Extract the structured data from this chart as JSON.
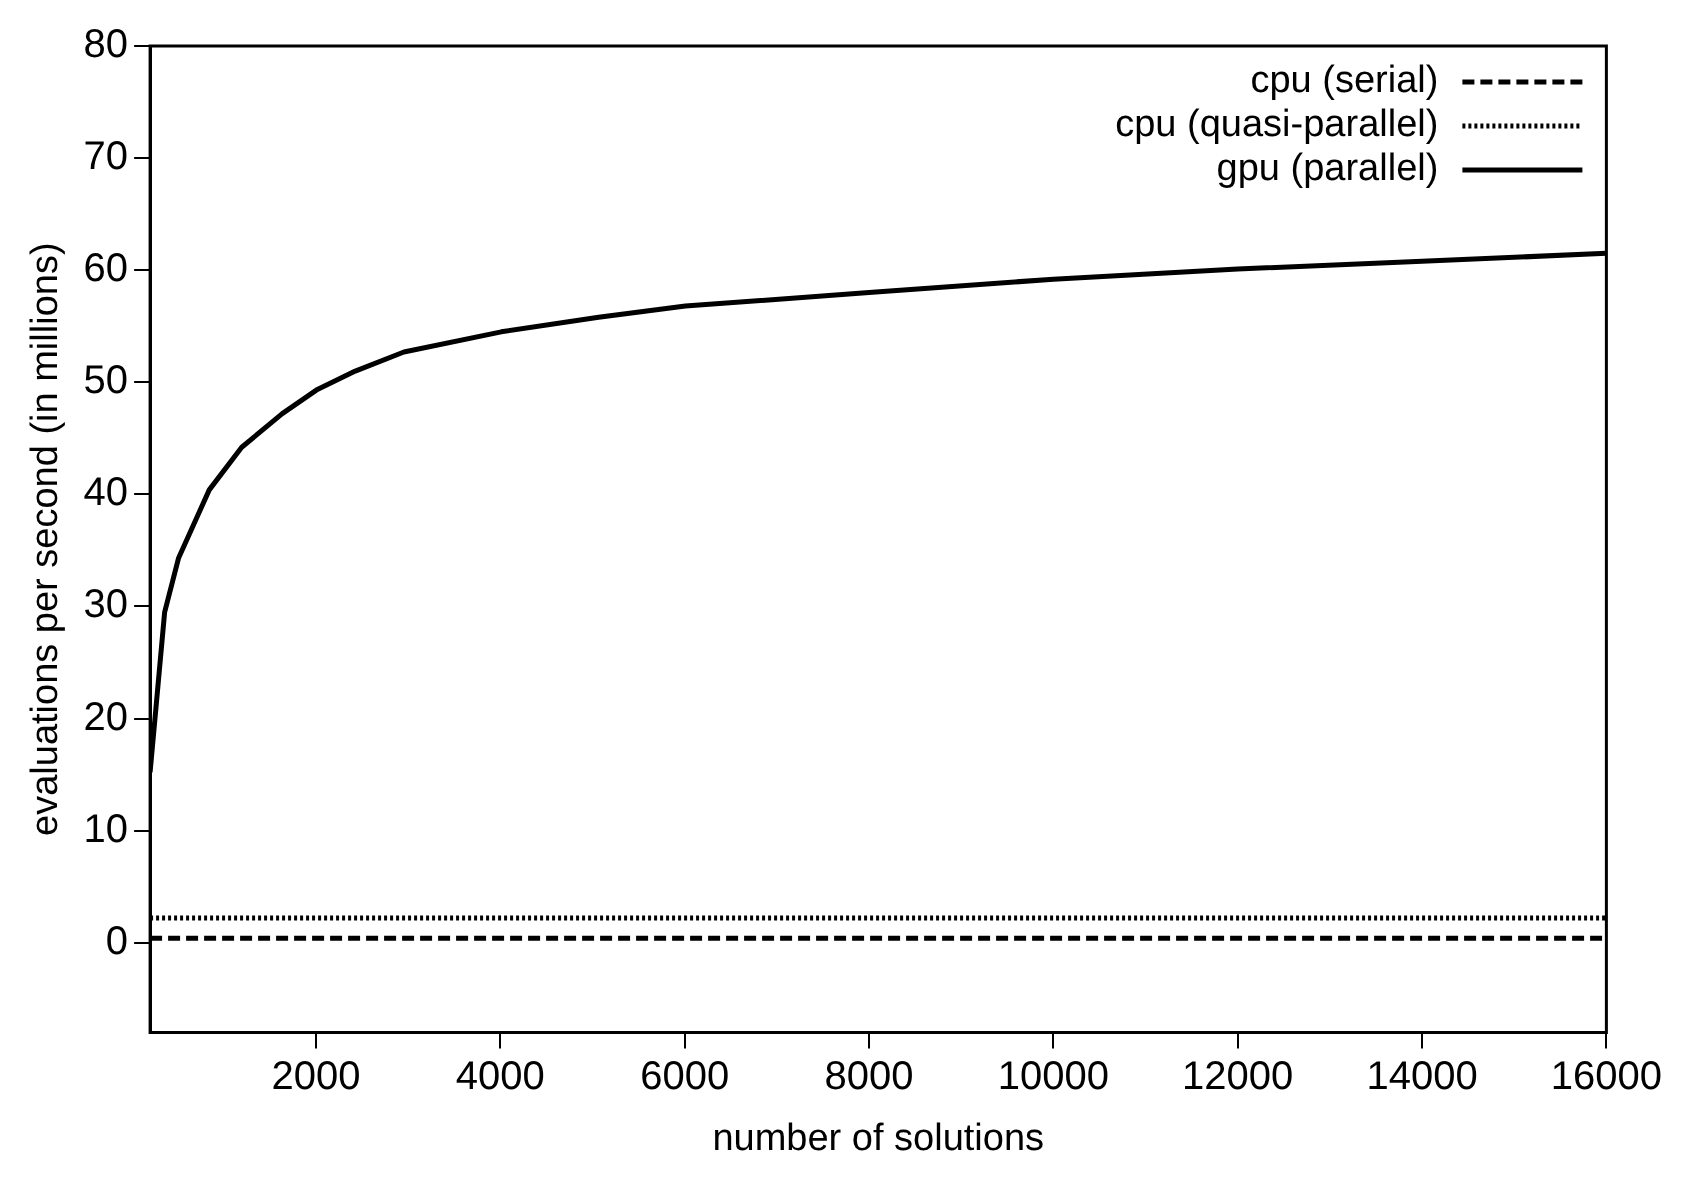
{
  "chart_data": {
    "type": "line",
    "xlabel": "number of solutions",
    "ylabel": "evaluations per second (in millions)",
    "xlim": [
      200,
      16000
    ],
    "xticks": [
      2000,
      4000,
      6000,
      8000,
      10000,
      12000,
      14000,
      16000
    ],
    "ylim": [
      -8,
      80
    ],
    "yticks": [
      0,
      10,
      20,
      30,
      40,
      50,
      60,
      70,
      80
    ],
    "grid": false,
    "legend": "top right",
    "marker": "none",
    "series": [
      {
        "name": "cpu (serial)",
        "color": "#000000",
        "line_style": "dashed",
        "x": [
          200,
          16000
        ],
        "values": [
          0.4,
          0.4
        ]
      },
      {
        "name": "cpu (quasi-parallel)",
        "color": "#000000",
        "line_style": "dotted",
        "x": [
          200,
          16000
        ],
        "values": [
          2.2,
          2.2
        ]
      },
      {
        "name": "gpu (parallel)",
        "color": "#000000",
        "line_style": "solid",
        "x": [
          200,
          358,
          508,
          842,
          1194,
          1634,
          2004,
          2426,
          2954,
          4010,
          5066,
          6008,
          8000,
          10000,
          12000,
          14000,
          16000
        ],
        "values": [
          15.2,
          29.5,
          34.3,
          40.4,
          44.2,
          47.2,
          49.3,
          51,
          52.7,
          54.5,
          55.8,
          56.8,
          58,
          59.2,
          60.1,
          60.8,
          61.5
        ]
      }
    ]
  }
}
